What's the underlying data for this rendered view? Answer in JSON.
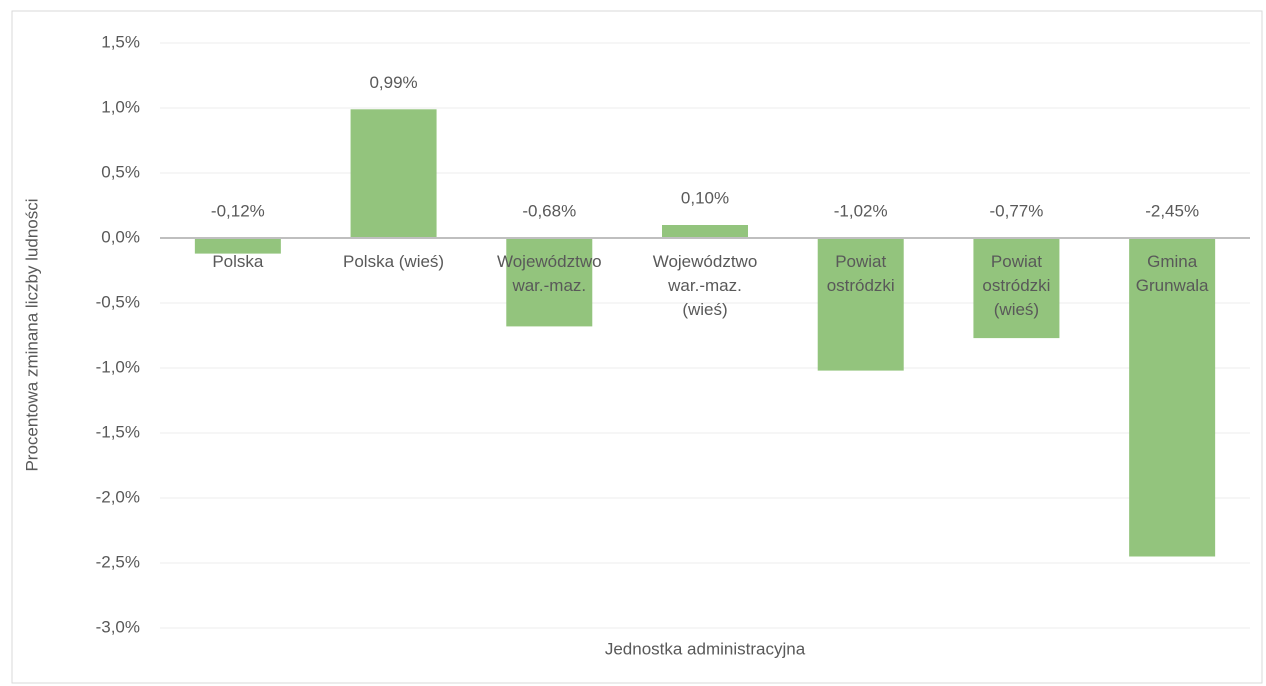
{
  "chart_data": {
    "type": "bar",
    "categories": [
      "Polska",
      "Polska (wieś)",
      "Województwo war.-maz.",
      "Województwo war.-maz. (wieś)",
      "Powiat ostródzki",
      "Powiat ostródzki (wieś)",
      "Gmina Grunwala"
    ],
    "values": [
      -0.12,
      0.99,
      -0.68,
      0.1,
      -1.02,
      -0.77,
      -2.45
    ],
    "value_labels": [
      "-0,12%",
      "0,99%",
      "-0,68%",
      "0,10%",
      "-1,02%",
      "-0,77%",
      "-2,45%"
    ],
    "color": "#93c47d",
    "x_label": "Jednostka administracyjna",
    "y_label": "Procentowa zminana liczby ludności",
    "ylim": [
      -3.0,
      1.5
    ],
    "yticks": [
      {
        "value": -3.0,
        "label": "-3,0%"
      },
      {
        "value": -2.5,
        "label": "-2,5%"
      },
      {
        "value": -2.0,
        "label": "-2,0%"
      },
      {
        "value": -1.5,
        "label": "-1,5%"
      },
      {
        "value": -1.0,
        "label": "-1,0%"
      },
      {
        "value": -0.5,
        "label": "-0,5%"
      },
      {
        "value": 0.0,
        "label": "0,0%"
      },
      {
        "value": 0.5,
        "label": "0,5%"
      },
      {
        "value": 1.0,
        "label": "1,0%"
      },
      {
        "value": 1.5,
        "label": "1,5%"
      }
    ],
    "grid": true
  }
}
